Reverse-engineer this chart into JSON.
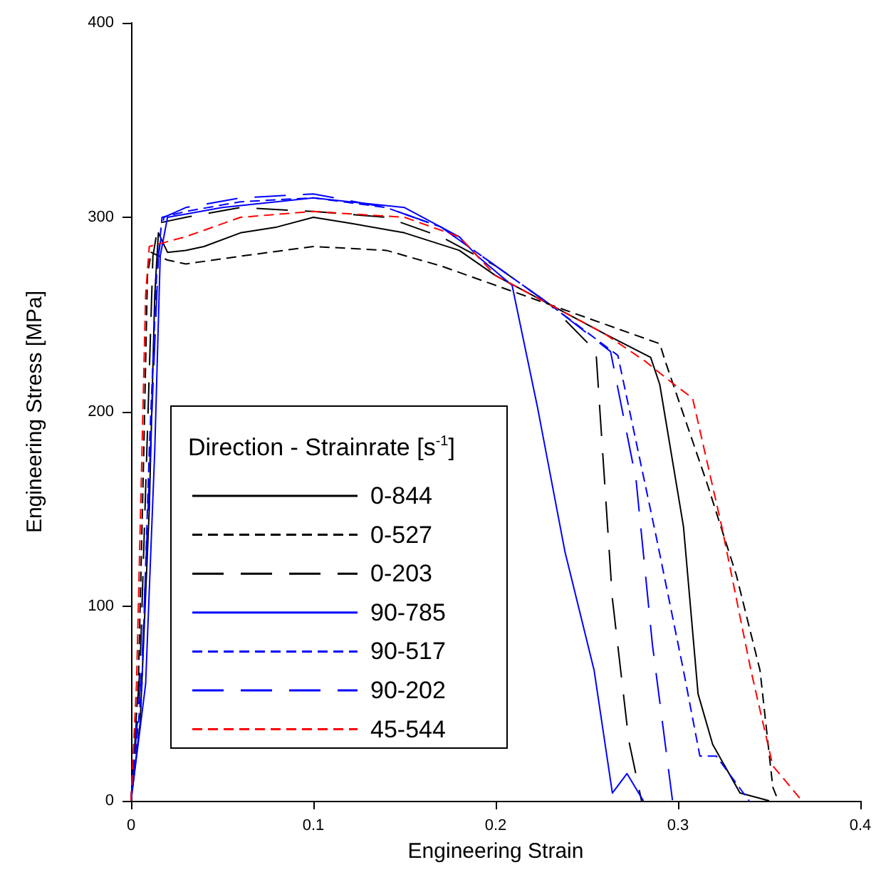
{
  "chart_data": {
    "type": "line",
    "xlabel": "Engineering Strain",
    "ylabel": "Engineering Stress [MPa]",
    "legend_title": "Direction - Strainrate [s$^{-1}$]",
    "legend": "bottom left",
    "grid": false,
    "marker": "none",
    "xlim": [
      0,
      0.4
    ],
    "ylim": [
      0,
      400
    ],
    "xticks": [
      0,
      0.1,
      0.2,
      0.3,
      0.4
    ],
    "yticks": [
      0,
      100,
      200,
      300,
      400
    ],
    "series": [
      {
        "name": "0-844",
        "color": "#000000",
        "line_style": "solid",
        "x": [
          0,
          0.005,
          0.01,
          0.013,
          0.015,
          0.02,
          0.03,
          0.04,
          0.06,
          0.08,
          0.1,
          0.12,
          0.15,
          0.18,
          0.2,
          0.23,
          0.26,
          0.285,
          0.29,
          0.303,
          0.311,
          0.319,
          0.334,
          0.35
        ],
        "values": [
          0,
          40,
          150,
          260,
          292,
          282,
          283,
          285,
          292,
          295,
          300,
          297,
          292,
          283,
          270,
          255,
          240,
          228,
          214,
          141,
          55,
          29,
          4,
          0
        ]
      },
      {
        "name": "0-527",
        "color": "#000000",
        "line_style": "dashed",
        "x": [
          0,
          0.004,
          0.007,
          0.009,
          0.011,
          0.02,
          0.03,
          0.06,
          0.1,
          0.14,
          0.17,
          0.2,
          0.23,
          0.26,
          0.29,
          0.293,
          0.316,
          0.332,
          0.345,
          0.352,
          0.355
        ],
        "values": [
          0,
          60,
          180,
          270,
          282,
          278,
          276,
          280,
          285,
          283,
          275,
          265,
          255,
          245,
          235,
          226,
          163,
          116,
          67,
          7,
          0
        ]
      },
      {
        "name": "0-203",
        "color": "#000000",
        "line_style": "longdash",
        "x": [
          0,
          0.005,
          0.009,
          0.012,
          0.015,
          0.03,
          0.06,
          0.1,
          0.14,
          0.17,
          0.2,
          0.23,
          0.255,
          0.264,
          0.273,
          0.28
        ],
        "values": [
          0,
          70,
          190,
          280,
          297,
          300,
          305,
          303,
          300,
          290,
          275,
          255,
          231,
          104,
          31,
          0
        ]
      },
      {
        "name": "90-785",
        "color": "#0000ff",
        "line_style": "solid",
        "x": [
          0,
          0.008,
          0.013,
          0.016,
          0.02,
          0.05,
          0.1,
          0.15,
          0.18,
          0.19,
          0.209,
          0.223,
          0.238,
          0.254,
          0.264,
          0.272,
          0.281
        ],
        "values": [
          0,
          60,
          180,
          280,
          300,
          305,
          310,
          305,
          290,
          280,
          265,
          202,
          128,
          67,
          4,
          14,
          0
        ]
      },
      {
        "name": "90-517",
        "color": "#0000ff",
        "line_style": "dashed",
        "x": [
          0,
          0.006,
          0.01,
          0.014,
          0.017,
          0.03,
          0.06,
          0.1,
          0.14,
          0.17,
          0.2,
          0.23,
          0.267,
          0.288,
          0.303,
          0.312,
          0.321,
          0.339
        ],
        "values": [
          0,
          60,
          180,
          270,
          300,
          303,
          308,
          310,
          305,
          295,
          275,
          255,
          229,
          136,
          67,
          23,
          23,
          0
        ]
      },
      {
        "name": "90-202",
        "color": "#0000ff",
        "line_style": "longdash",
        "x": [
          0,
          0.006,
          0.011,
          0.015,
          0.018,
          0.03,
          0.06,
          0.1,
          0.14,
          0.17,
          0.2,
          0.23,
          0.263,
          0.277,
          0.286,
          0.297
        ],
        "values": [
          0,
          70,
          190,
          280,
          300,
          305,
          310,
          312,
          305,
          295,
          275,
          255,
          231,
          165,
          80,
          0
        ]
      },
      {
        "name": "45-544",
        "color": "#ff0000",
        "line_style": "dashed",
        "x": [
          0,
          0.003,
          0.006,
          0.008,
          0.01,
          0.03,
          0.06,
          0.1,
          0.15,
          0.18,
          0.2,
          0.23,
          0.26,
          0.282,
          0.298,
          0.308,
          0.324,
          0.34,
          0.352,
          0.368
        ],
        "values": [
          0,
          60,
          180,
          260,
          285,
          290,
          300,
          303,
          300,
          290,
          270,
          255,
          240,
          226,
          214,
          207,
          141,
          67,
          18,
          0
        ]
      }
    ]
  }
}
